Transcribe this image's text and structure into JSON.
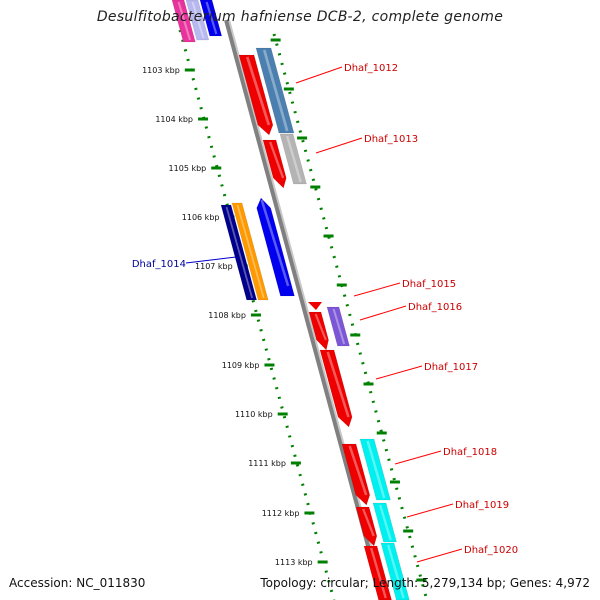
{
  "title": "Desulfitobacterium hafniense DCB-2, complete genome",
  "footer": {
    "accession": "Accession: NC_011830",
    "summary": "Topology: circular; Length: 5,279,134 bp; Genes: 4,972"
  },
  "colors": {
    "backbone": "#808080",
    "tick": "#008000",
    "forward_label": "#cc0000",
    "reverse_label": "#000099",
    "callout_forward": "#ff0000",
    "callout_reverse": "#0000cc"
  },
  "kbp_ticks": [
    "1103 kbp",
    "1104 kbp",
    "1105 kbp",
    "1106 kbp",
    "1107 kbp",
    "1108 kbp",
    "1109 kbp",
    "1110 kbp",
    "1111 kbp",
    "1112 kbp",
    "1113 kbp"
  ],
  "gene_labels": [
    {
      "label": "Dhaf_1012",
      "strand": "forward"
    },
    {
      "label": "Dhaf_1013",
      "strand": "forward"
    },
    {
      "label": "Dhaf_1014",
      "strand": "reverse"
    },
    {
      "label": "Dhaf_1015",
      "strand": "forward"
    },
    {
      "label": "Dhaf_1016",
      "strand": "forward"
    },
    {
      "label": "Dhaf_1017",
      "strand": "forward"
    },
    {
      "label": "Dhaf_1018",
      "strand": "forward"
    },
    {
      "label": "Dhaf_1019",
      "strand": "forward"
    },
    {
      "label": "Dhaf_1020",
      "strand": "forward"
    }
  ]
}
